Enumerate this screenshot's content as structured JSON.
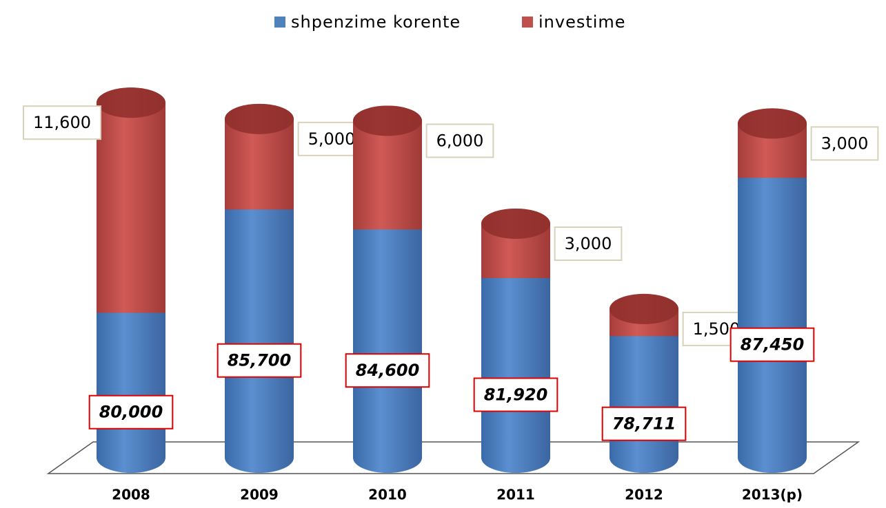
{
  "chart_data": {
    "type": "bar3d-stacked",
    "categories": [
      "2008",
      "2009",
      "2010",
      "2011",
      "2012",
      "2013(p)"
    ],
    "series": [
      {
        "name": "shpenzime korente",
        "color": "#4f81bd",
        "values": [
          80000,
          85700,
          84600,
          81920,
          78711,
          87450
        ],
        "value_labels": [
          "80,000",
          "85,700",
          "84,600",
          "81,920",
          "78,711",
          "87,450"
        ]
      },
      {
        "name": "investime",
        "color": "#c0504d",
        "values": [
          11600,
          5000,
          6000,
          3000,
          1500,
          3000
        ],
        "value_labels": [
          "11,600",
          "5,000",
          "6,000",
          "3,000",
          "1,500",
          "3,000"
        ]
      }
    ],
    "ylim": [
      72000,
      94000
    ],
    "legend": "top"
  }
}
